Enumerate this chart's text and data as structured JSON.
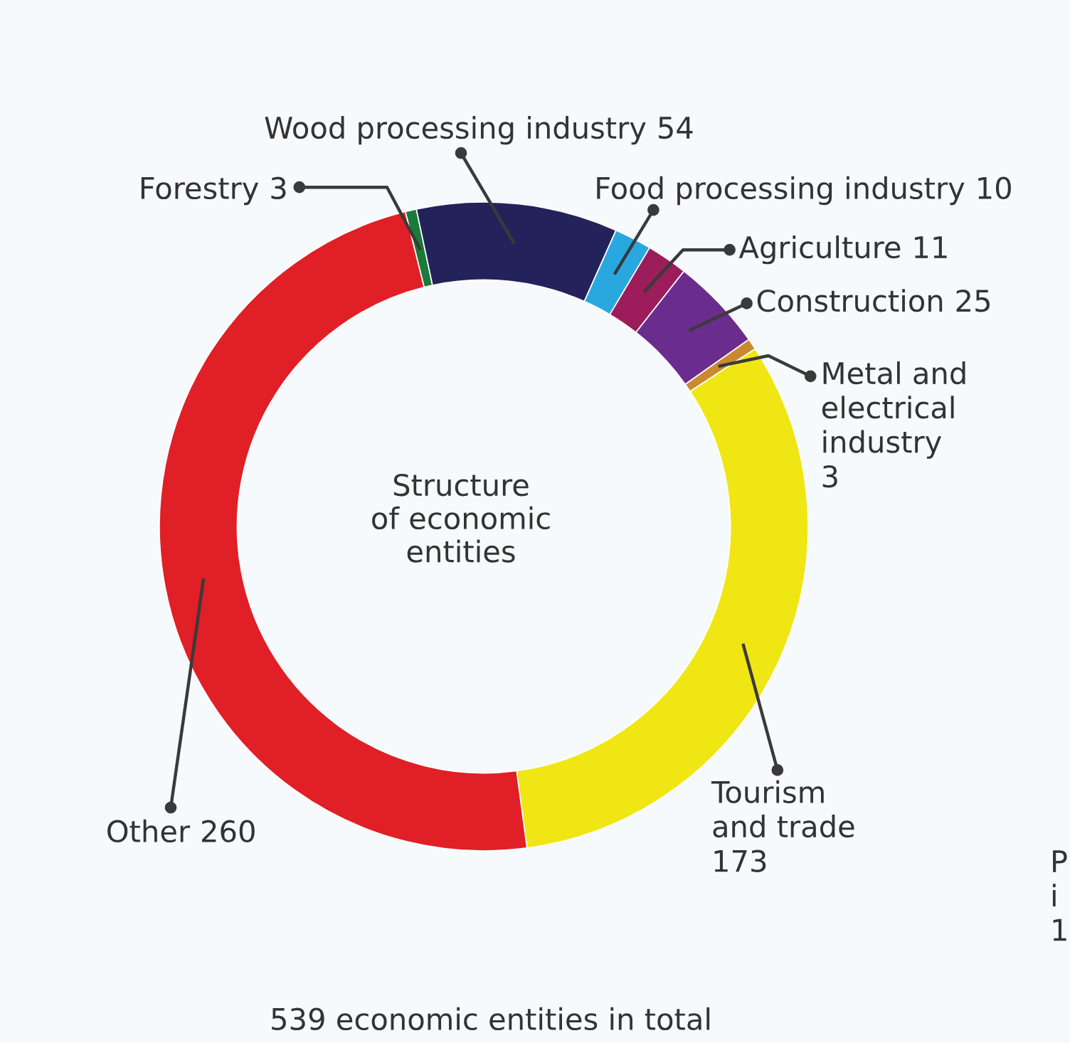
{
  "chart_data": {
    "type": "donut",
    "title": "Structure\nof economic\nentities",
    "categories": [
      "Forestry",
      "Wood processing industry",
      "Food processing industry",
      "Agriculture",
      "Construction",
      "Metal and\nelectrical\nindustry",
      "Tourism\nand trade",
      "Other"
    ],
    "values": [
      3,
      54,
      10,
      11,
      25,
      3,
      173,
      260
    ],
    "colors": [
      "#1a7a3a",
      "#23225a",
      "#29a8e0",
      "#9c1c5c",
      "#6a2d8e",
      "#c98a2e",
      "#f0e614",
      "#e11f26"
    ],
    "data_labels": true,
    "annotations": [
      "539 economic entities in total",
      "P\ni\n1"
    ]
  }
}
